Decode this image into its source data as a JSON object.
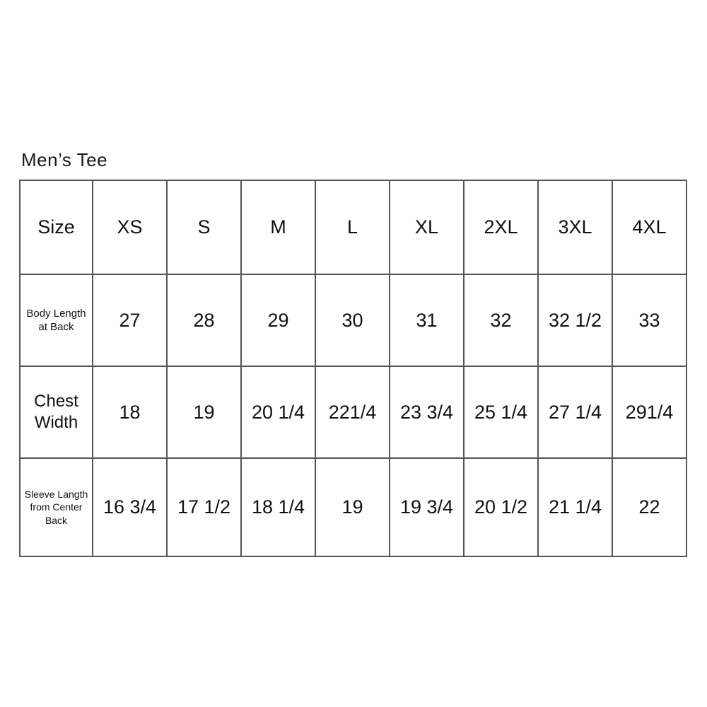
{
  "title": "Men’s Tee",
  "chart_data": {
    "type": "table",
    "title": "Men’s Tee",
    "columns": [
      "Size",
      "XS",
      "S",
      "M",
      "L",
      "XL",
      "2XL",
      "3XL",
      "4XL"
    ],
    "rows": [
      {
        "label": "Body Length at Back",
        "values": [
          "27",
          "28",
          "29",
          "30",
          "31",
          "32",
          "32 1/2",
          "33"
        ]
      },
      {
        "label": "Chest Width",
        "values": [
          "18",
          "19",
          "20 1/4",
          "221/4",
          "23 3/4",
          "25 1/4",
          "27 1/4",
          "291/4"
        ]
      },
      {
        "label": "Sleeve Langth from Center Back",
        "values": [
          "16 3/4",
          "17 1/2",
          "18 1/4",
          "19",
          "19 3/4",
          "20 1/2",
          "21 1/4",
          "22"
        ]
      }
    ],
    "layout": {
      "grid": "full-borders",
      "header_position": "top-row",
      "label_position": "left-column"
    }
  },
  "colors": {
    "border": "#555555",
    "text": "#111111",
    "background": "#ffffff"
  }
}
